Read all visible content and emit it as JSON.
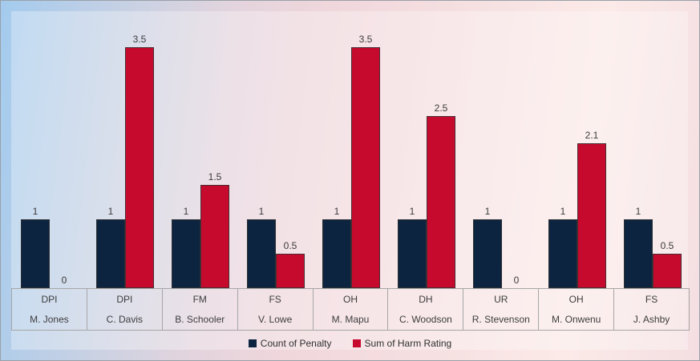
{
  "chart_data": {
    "type": "bar",
    "title": "",
    "categories": [
      {
        "penalty": "DPI",
        "player": "M. Jones"
      },
      {
        "penalty": "DPI",
        "player": "C. Davis"
      },
      {
        "penalty": "FM",
        "player": "B. Schooler"
      },
      {
        "penalty": "FS",
        "player": "V. Lowe"
      },
      {
        "penalty": "OH",
        "player": "M. Mapu"
      },
      {
        "penalty": "DH",
        "player": "C. Woodson"
      },
      {
        "penalty": "UR",
        "player": "R. Stevenson"
      },
      {
        "penalty": "OH",
        "player": "M. Onwenu"
      },
      {
        "penalty": "FS",
        "player": "J. Ashby"
      }
    ],
    "series": [
      {
        "name": "Count of Penalty",
        "color": "#0D2440",
        "values": [
          1,
          1,
          1,
          1,
          1,
          1,
          1,
          1,
          1
        ]
      },
      {
        "name": "Sum of Harm Rating",
        "color": "#C60A2E",
        "values": [
          0,
          3.5,
          1.5,
          0.5,
          3.5,
          2.5,
          0,
          2.1,
          0.5
        ]
      }
    ],
    "data_labels": [
      [
        "1",
        "1",
        "1",
        "1",
        "1",
        "1",
        "1",
        "1",
        "1"
      ],
      [
        "0",
        "3.5",
        "1.5",
        "0.5",
        "3.5",
        "2.5",
        "0",
        "2.1",
        "0.5"
      ]
    ],
    "ylim": [
      0,
      3.65
    ],
    "y_axis_visible": false,
    "gridlines": false,
    "legend_position": "bottom"
  },
  "colors": {
    "count_series": "#0D2440",
    "harm_series": "#C60A2E",
    "label_text": "#3B3B3B",
    "axis_line": "#A6A6A6",
    "bar_outline": "#323232",
    "bg_gradient_left": "#A3CBEE",
    "bg_gradient_right": "#F4DEE1"
  }
}
